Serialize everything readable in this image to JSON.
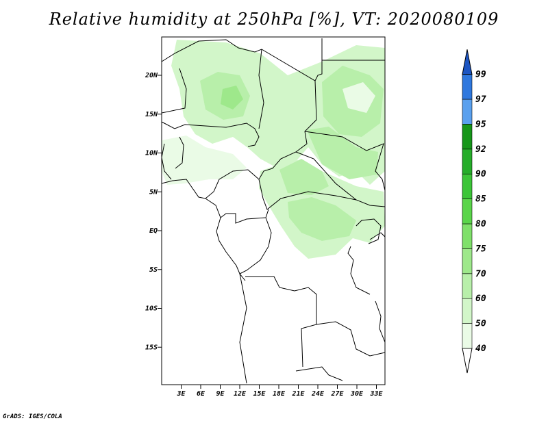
{
  "title": "Relative humidity at 250hPa [%], VT: 2020080109",
  "credit": "GrADS: IGES/COLA",
  "map": {
    "lat_labels": [
      "20N",
      "15N",
      "10N",
      "5N",
      "EQ",
      "5S",
      "10S",
      "15S"
    ],
    "lat_values": [
      20,
      15,
      10,
      5,
      0,
      -5,
      -10,
      -15
    ],
    "lon_labels": [
      "3E",
      "6E",
      "9E",
      "12E",
      "15E",
      "18E",
      "21E",
      "24E",
      "27E",
      "30E",
      "33E"
    ],
    "lon_values": [
      3,
      6,
      9,
      12,
      15,
      18,
      21,
      24,
      27,
      30,
      33
    ]
  },
  "colorbar": {
    "labels": [
      "40",
      "50",
      "60",
      "70",
      "75",
      "80",
      "85",
      "90",
      "92",
      "95",
      "97",
      "99"
    ],
    "colors": [
      "#eafbe6",
      "#d2f6c9",
      "#b8efaa",
      "#9ee88b",
      "#7fe06a",
      "#5ad54a",
      "#3cc538",
      "#26ad2a",
      "#169619",
      "#5aa0ee",
      "#2f78de",
      "#1c55c2"
    ]
  }
}
